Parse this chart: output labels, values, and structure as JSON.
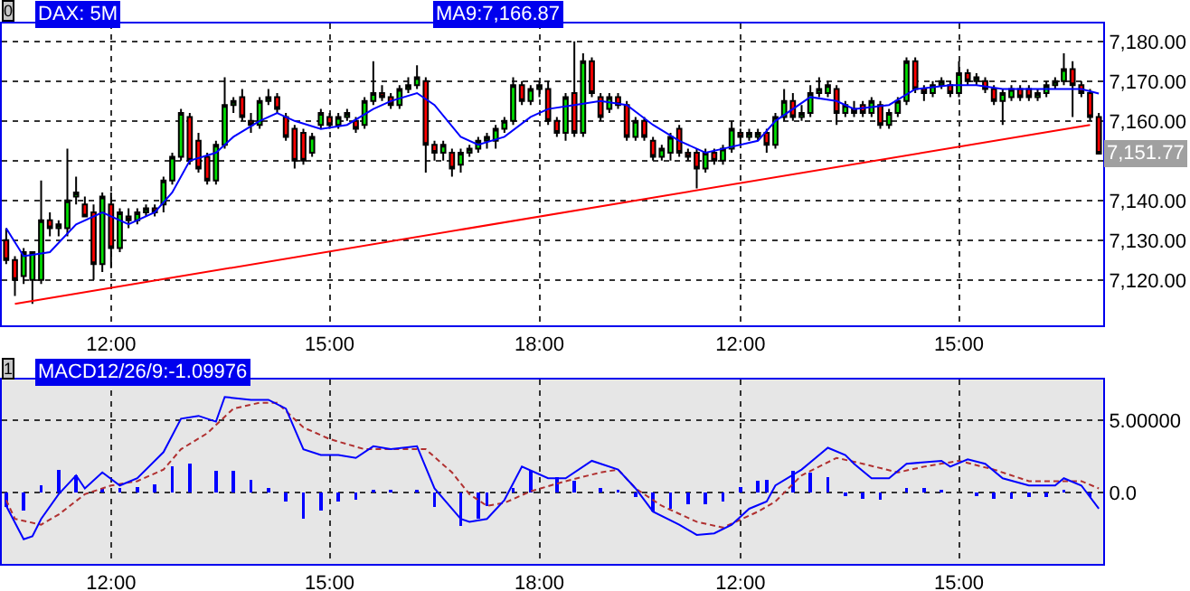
{
  "chart_data": [
    {
      "type": "candlestick",
      "title": "DAX: 5M",
      "subtitle": "MA9:7,166.87",
      "annotations": [
        "0",
        "7,151.77"
      ],
      "categories": [
        null,
        null,
        null,
        null,
        null,
        null,
        null,
        null,
        null,
        null,
        null,
        null,
        "12:00",
        null,
        null,
        null,
        null,
        null,
        null,
        null,
        null,
        null,
        null,
        null,
        null,
        null,
        null,
        null,
        null,
        null,
        null,
        null,
        null,
        null,
        null,
        null,
        null,
        "15:00",
        null,
        null,
        null,
        null,
        null,
        null,
        null,
        null,
        null,
        null,
        null,
        null,
        null,
        null,
        null,
        null,
        null,
        null,
        null,
        null,
        null,
        null,
        null,
        "18:00",
        null,
        null,
        null,
        null,
        null,
        null,
        null,
        null,
        null,
        null,
        null,
        null,
        null,
        null,
        null,
        null,
        null,
        null,
        null,
        null,
        null,
        null,
        "12:00",
        null,
        null,
        null,
        null,
        null,
        null,
        null,
        null,
        null,
        null,
        null,
        null,
        null,
        null,
        null,
        null,
        null,
        null,
        null,
        null,
        null,
        null,
        null,
        null,
        "15:00",
        null,
        null,
        null,
        null,
        null,
        null,
        null,
        null,
        null,
        null,
        null,
        null,
        null,
        null,
        null,
        null
      ],
      "ylim": [
        7108.6,
        7184.5
      ],
      "yticks": [
        {
          "value": 7120,
          "label": "7,120.00"
        },
        {
          "value": 7130,
          "label": "7,130.00"
        },
        {
          "value": 7140,
          "label": "7,140.00"
        },
        {
          "value": 7150,
          "label": null
        },
        {
          "value": 7160,
          "label": "7,160.00"
        },
        {
          "value": 7170,
          "label": "7,170.00"
        },
        {
          "value": 7180,
          "label": "7,180.00"
        }
      ],
      "grid": true,
      "series": [
        {
          "type": "line",
          "color": "#0000ff",
          "values": [
            7133,
            null,
            7126,
            null,
            null,
            7127,
            null,
            null,
            7134,
            null,
            null,
            7137,
            null,
            null,
            7134,
            null,
            null,
            7137,
            null,
            7142,
            null,
            7150,
            null,
            null,
            7152,
            null,
            7156,
            null,
            null,
            7160,
            null,
            7162,
            null,
            7160,
            null,
            null,
            7158,
            null,
            null,
            7159,
            null,
            null,
            7163,
            null,
            7165,
            null,
            null,
            7167,
            null,
            7164,
            null,
            null,
            7156,
            null,
            7154,
            null,
            null,
            7156,
            null,
            null,
            7161,
            null,
            7163,
            null,
            null,
            7164,
            null,
            null,
            7165,
            null,
            null,
            7164,
            null,
            null,
            7159,
            null,
            null,
            7155,
            null,
            null,
            7152,
            null,
            7153,
            null,
            null,
            null,
            7155,
            null,
            7160,
            null,
            null,
            null,
            7166,
            null,
            null,
            7165,
            null,
            7163,
            null,
            null,
            null,
            7164,
            null,
            null,
            7168,
            null,
            null,
            null,
            7169,
            null,
            null,
            7169,
            null,
            null,
            7168,
            null,
            null,
            7168,
            null,
            null,
            7168,
            null,
            null,
            7168,
            null,
            7166.87
          ]
        },
        {
          "type": "line",
          "color": "#ff0000",
          "values": [
            null,
            7114,
            null,
            null,
            null,
            null,
            null,
            null,
            null,
            null,
            null,
            null,
            null,
            null,
            null,
            null,
            null,
            null,
            null,
            null,
            null,
            null,
            null,
            null,
            null,
            null,
            null,
            null,
            null,
            null,
            null,
            null,
            null,
            null,
            null,
            null,
            null,
            null,
            null,
            null,
            null,
            null,
            null,
            null,
            null,
            null,
            null,
            null,
            null,
            null,
            null,
            null,
            null,
            null,
            null,
            null,
            null,
            null,
            null,
            null,
            null,
            null,
            null,
            null,
            null,
            null,
            null,
            null,
            null,
            null,
            null,
            null,
            null,
            null,
            null,
            null,
            null,
            null,
            null,
            null,
            null,
            null,
            null,
            null,
            null,
            null,
            null,
            null,
            null,
            null,
            null,
            null,
            null,
            null,
            null,
            null,
            null,
            null,
            null,
            null,
            null,
            null,
            null,
            null,
            null,
            null,
            null,
            null,
            null,
            null,
            null,
            null,
            null,
            null,
            null,
            null,
            null,
            null,
            null,
            null,
            null,
            null,
            null,
            null,
            7159,
            null
          ]
        },
        {
          "type": "candlestick",
          "ohlc": [
            [
              7130,
              7133,
              7124,
              7125
            ],
            [
              7125,
              7126,
              7116,
              7120
            ],
            [
              7121,
              7128,
              7119,
              7127
            ],
            [
              7120,
              7127,
              7114,
              7127
            ],
            [
              7120,
              7145,
              7119,
              7135
            ],
            [
              7135,
              7137,
              7131,
              7133
            ],
            [
              7133,
              7135,
              7131,
              7134
            ],
            [
              7133,
              7153,
              7131,
              7140
            ],
            [
              7141,
              7146,
              7139,
              7142
            ],
            [
              7139,
              7141,
              7136,
              7136
            ],
            [
              7137,
              7139,
              7120,
              7124
            ],
            [
              7124,
              7142,
              7122,
              7141
            ],
            [
              7139,
              7142,
              7123,
              7128
            ],
            [
              7128,
              7138,
              7127,
              7137
            ],
            [
              7136,
              7138,
              7133,
              7135
            ],
            [
              7135,
              7138,
              7134,
              7137
            ],
            [
              7137,
              7139,
              7136,
              7138
            ],
            [
              7138,
              7139,
              7136,
              7137
            ],
            [
              7139,
              7146,
              7137,
              7145
            ],
            [
              7145,
              7152,
              7144,
              7151
            ],
            [
              7151,
              7163,
              7150,
              7162
            ],
            [
              7161,
              7162,
              7149,
              7150
            ],
            [
              7155,
              7157,
              7147,
              7148
            ],
            [
              7151,
              7152,
              7144,
              7145
            ],
            [
              7145,
              7155,
              7144,
              7154
            ],
            [
              7154,
              7171,
              7153,
              7164
            ],
            [
              7164,
              7166,
              7162,
              7165
            ],
            [
              7166,
              7168,
              7160,
              7161
            ],
            [
              7160,
              7162,
              7157,
              7159
            ],
            [
              7159,
              7166,
              7158,
              7165
            ],
            [
              7165,
              7168,
              7164,
              7166
            ],
            [
              7166,
              7167,
              7162,
              7163
            ],
            [
              7161,
              7162,
              7155,
              7156
            ],
            [
              7158,
              7159,
              7148,
              7150
            ],
            [
              7157,
              7158,
              7149,
              7150
            ],
            [
              7152,
              7157,
              7151,
              7156
            ],
            [
              7159,
              7163,
              7158,
              7162
            ],
            [
              7161,
              7162,
              7158,
              7159
            ],
            [
              7159,
              7162,
              7158,
              7161
            ],
            [
              7161,
              7163,
              7160,
              7162
            ],
            [
              7160,
              7161,
              7157,
              7158
            ],
            [
              7159,
              7166,
              7158,
              7165
            ],
            [
              7165,
              7175,
              7164,
              7167
            ],
            [
              7167,
              7169,
              7165,
              7166
            ],
            [
              7166,
              7167,
              7163,
              7164
            ],
            [
              7164,
              7169,
              7163,
              7168
            ],
            [
              7168,
              7171,
              7167,
              7169
            ],
            [
              7169,
              7174,
              7168,
              7171
            ],
            [
              7170,
              7171,
              7147,
              7154
            ],
            [
              7154,
              7155,
              7150,
              7152
            ],
            [
              7152,
              7155,
              7150,
              7154
            ],
            [
              7152,
              7153,
              7146,
              7148
            ],
            [
              7149,
              7153,
              7147,
              7152
            ],
            [
              7152,
              7154,
              7151,
              7153
            ],
            [
              7153,
              7156,
              7152,
              7155
            ],
            [
              7155,
              7157,
              7153,
              7156
            ],
            [
              7155,
              7159,
              7153,
              7158
            ],
            [
              7158,
              7161,
              7157,
              7160
            ],
            [
              7160,
              7171,
              7159,
              7169
            ],
            [
              7169,
              7170,
              7164,
              7165
            ],
            [
              7165,
              7169,
              7164,
              7168
            ],
            [
              7168,
              7170,
              7166,
              7169
            ],
            [
              7168,
              7170,
              7159,
              7160
            ],
            [
              7160,
              7161,
              7156,
              7157
            ],
            [
              7157,
              7167,
              7155,
              7166
            ],
            [
              7167,
              7180,
              7156,
              7157
            ],
            [
              7157,
              7177,
              7156,
              7175
            ],
            [
              7175,
              7176,
              7166,
              7167
            ],
            [
              7166,
              7167,
              7160,
              7161
            ],
            [
              7163,
              7167,
              7162,
              7166
            ],
            [
              7166,
              7167,
              7163,
              7164
            ],
            [
              7164,
              7165,
              7155,
              7156
            ],
            [
              7156,
              7161,
              7155,
              7160
            ],
            [
              7160,
              7161,
              7155,
              7156
            ],
            [
              7155,
              7156,
              7150,
              7151
            ],
            [
              7151,
              7154,
              7150,
              7153
            ],
            [
              7152,
              7157,
              7150,
              7156
            ],
            [
              7158,
              7159,
              7151,
              7152
            ],
            [
              7152,
              7153,
              7150,
              7151
            ],
            [
              7152,
              7153,
              7143,
              7148
            ],
            [
              7148,
              7153,
              7147,
              7152
            ],
            [
              7152,
              7153,
              7149,
              7150
            ],
            [
              7150,
              7154,
              7149,
              7153
            ],
            [
              7153,
              7160,
              7152,
              7158
            ],
            [
              7157,
              7158,
              7154,
              7156
            ],
            [
              7156,
              7158,
              7155,
              7157
            ],
            [
              7156,
              7158,
              7155,
              7157
            ],
            [
              7157,
              7158,
              7152,
              7154
            ],
            [
              7154,
              7162,
              7153,
              7161
            ],
            [
              7161,
              7168,
              7160,
              7165
            ],
            [
              7165,
              7167,
              7160,
              7161
            ],
            [
              7161,
              7164,
              7160,
              7162
            ],
            [
              7162,
              7169,
              7161,
              7167
            ],
            [
              7167,
              7171,
              7166,
              7168
            ],
            [
              7167,
              7170,
              7166,
              7169
            ],
            [
              7168,
              7169,
              7159,
              7162
            ],
            [
              7162,
              7165,
              7161,
              7164
            ],
            [
              7163,
              7165,
              7161,
              7162
            ],
            [
              7164,
              7165,
              7161,
              7162
            ],
            [
              7162,
              7166,
              7161,
              7165
            ],
            [
              7164,
              7165,
              7158,
              7159
            ],
            [
              7159,
              7163,
              7158,
              7162
            ],
            [
              7162,
              7166,
              7161,
              7165
            ],
            [
              7165,
              7176,
              7164,
              7175
            ],
            [
              7175,
              7176,
              7167,
              7168
            ],
            [
              7168,
              7169,
              7165,
              7167
            ],
            [
              7167,
              7170,
              7166,
              7169
            ],
            [
              7169,
              7171,
              7168,
              7170
            ],
            [
              7169,
              7170,
              7166,
              7167
            ],
            [
              7167,
              7175,
              7166,
              7172
            ],
            [
              7172,
              7173,
              7169,
              7170
            ],
            [
              7170,
              7172,
              7169,
              7171
            ],
            [
              7170,
              7171,
              7167,
              7168
            ],
            [
              7168,
              7169,
              7164,
              7165
            ],
            [
              7165,
              7168,
              7159,
              7167
            ],
            [
              7166,
              7169,
              7165,
              7168
            ],
            [
              7168,
              7169,
              7165,
              7166
            ],
            [
              7168,
              7169,
              7165,
              7166
            ],
            [
              7166,
              7168,
              7165,
              7167
            ],
            [
              7167,
              7170,
              7166,
              7169
            ],
            [
              7169,
              7171,
              7168,
              7170
            ],
            [
              7170,
              7177,
              7169,
              7173
            ],
            [
              7173,
              7175,
              7161,
              7169
            ],
            [
              7169,
              7170,
              7166,
              7167
            ],
            [
              7167,
              7168,
              7160,
              7161
            ],
            [
              7161,
              7162,
              7151.77,
              7151.77
            ]
          ]
        }
      ]
    },
    {
      "type": "line",
      "title": "MACD12/26/9:-1.09976",
      "annotations": [
        "1"
      ],
      "categories": [
        null,
        null,
        null,
        null,
        null,
        null,
        null,
        null,
        null,
        null,
        null,
        null,
        "12:00",
        null,
        null,
        null,
        null,
        null,
        null,
        null,
        null,
        null,
        null,
        null,
        null,
        null,
        null,
        null,
        null,
        null,
        null,
        null,
        null,
        null,
        null,
        null,
        null,
        "15:00",
        null,
        null,
        null,
        null,
        null,
        null,
        null,
        null,
        null,
        null,
        null,
        null,
        null,
        null,
        null,
        null,
        null,
        null,
        null,
        null,
        null,
        null,
        null,
        "18:00",
        null,
        null,
        null,
        null,
        null,
        null,
        null,
        null,
        null,
        null,
        null,
        null,
        null,
        null,
        null,
        null,
        null,
        null,
        null,
        null,
        null,
        null,
        "12:00",
        null,
        null,
        null,
        null,
        null,
        null,
        null,
        null,
        null,
        null,
        null,
        null,
        null,
        null,
        null,
        null,
        null,
        null,
        null,
        null,
        null,
        null,
        null,
        null,
        "15:00",
        null,
        null,
        null,
        null,
        null,
        null,
        null,
        null,
        null,
        null,
        null,
        null,
        null,
        null,
        null,
        null
      ],
      "ylim": [
        -4.9,
        7.8
      ],
      "yticks": [
        {
          "value": 0,
          "label": "0.0"
        },
        {
          "value": 5,
          "label": "5.00000"
        }
      ],
      "grid": true,
      "series": [
        {
          "type": "bar",
          "color": "#0000ff",
          "values": [
            -1.0,
            null,
            -1.2,
            null,
            0.5,
            null,
            1.6,
            null,
            1.2,
            null,
            null,
            0.3,
            null,
            0.3,
            null,
            0.4,
            null,
            0.6,
            null,
            1.8,
            null,
            2.0,
            null,
            null,
            1.5,
            null,
            1.5,
            null,
            0.9,
            null,
            0.3,
            null,
            -0.6,
            null,
            -1.8,
            null,
            -1.2,
            null,
            -0.6,
            null,
            -0.5,
            null,
            0.2,
            null,
            0.2,
            null,
            null,
            0.2,
            null,
            -1.0,
            null,
            null,
            -2.3,
            null,
            -1.8,
            -0.9,
            null,
            null,
            0.3,
            null,
            1.5,
            null,
            null,
            1.1,
            null,
            0.8,
            null,
            null,
            0.3,
            null,
            0.2,
            null,
            -0.3,
            null,
            -1.3,
            null,
            -1.1,
            null,
            -0.8,
            null,
            -0.8,
            null,
            -0.6,
            null,
            0.4,
            null,
            0.8,
            0.9,
            null,
            null,
            1.5,
            null,
            1.4,
            null,
            1.1,
            null,
            -0.2,
            null,
            -0.4,
            null,
            -0.5,
            null,
            null,
            0.3,
            null,
            0.3,
            null,
            0.2,
            null,
            null,
            null,
            -0.2,
            null,
            -0.4,
            null,
            -0.4,
            null,
            -0.3,
            null,
            -0.3,
            null,
            0.2,
            null,
            null,
            -0.3,
            null
          ]
        },
        {
          "type": "line",
          "color": "#b03030",
          "line_style": "dashed",
          "values": [
            -0.5,
            -1.8,
            null,
            null,
            -2.2,
            null,
            -1.5,
            null,
            null,
            -0.1,
            null,
            null,
            0.5,
            null,
            null,
            0.8,
            null,
            null,
            1.6,
            null,
            3.0,
            null,
            null,
            4.1,
            null,
            null,
            5.8,
            null,
            null,
            6.2,
            null,
            6.2,
            null,
            null,
            4.5,
            null,
            null,
            3.7,
            null,
            null,
            null,
            3.0,
            null,
            null,
            3.0,
            null,
            null,
            null,
            3.0,
            null,
            null,
            1.4,
            null,
            -0.1,
            null,
            -0.9,
            null,
            -0.7,
            null,
            null,
            0.1,
            null,
            null,
            null,
            0.8,
            null,
            null,
            null,
            1.4,
            null,
            1.6,
            null,
            0.3,
            null,
            null,
            -0.9,
            null,
            null,
            null,
            -2.0,
            null,
            null,
            -2.4,
            null,
            null,
            null,
            -1.3,
            null,
            -0.6,
            null,
            null,
            1.2,
            null,
            null,
            null,
            2.4,
            null,
            null,
            2.0,
            null,
            null,
            null,
            1.4,
            null,
            null,
            1.8,
            null,
            null,
            null,
            2.2,
            null,
            null,
            null,
            1.6,
            null,
            null,
            null,
            0.8,
            null,
            null,
            0.8,
            null,
            null,
            0.8,
            null,
            0.3
          ]
        },
        {
          "type": "line",
          "color": "#0000ff",
          "line_style": "solid",
          "values": [
            -0.9,
            null,
            -3.2,
            -3.0,
            -1.8,
            null,
            -0.1,
            null,
            1.2,
            0.3,
            null,
            1.4,
            null,
            0.5,
            null,
            1.0,
            null,
            null,
            2.8,
            null,
            5.1,
            null,
            5.3,
            null,
            4.9,
            6.6,
            null,
            null,
            6.4,
            null,
            6.4,
            null,
            5.8,
            null,
            3.0,
            null,
            2.6,
            null,
            2.6,
            null,
            2.4,
            null,
            3.2,
            null,
            3.0,
            null,
            null,
            3.2,
            null,
            0.3,
            null,
            null,
            -1.8,
            -2.0,
            null,
            -1.8,
            null,
            -0.5,
            null,
            1.8,
            null,
            null,
            1.0,
            null,
            1.0,
            null,
            null,
            2.2,
            null,
            null,
            1.6,
            null,
            0.3,
            null,
            -1.3,
            null,
            null,
            -2.2,
            null,
            -2.9,
            null,
            -2.8,
            null,
            -2.2,
            null,
            -1.1,
            null,
            -0.6,
            0.5,
            null,
            null,
            1.6,
            null,
            null,
            3.1,
            null,
            2.6,
            2.0,
            null,
            1.0,
            null,
            1.0,
            null,
            2.0,
            null,
            null,
            null,
            2.2,
            1.8,
            null,
            2.3,
            null,
            2.0,
            null,
            1.0,
            null,
            null,
            0.5,
            null,
            null,
            0.5,
            1.0,
            null,
            0.5,
            null,
            -1.1
          ]
        }
      ]
    }
  ]
}
